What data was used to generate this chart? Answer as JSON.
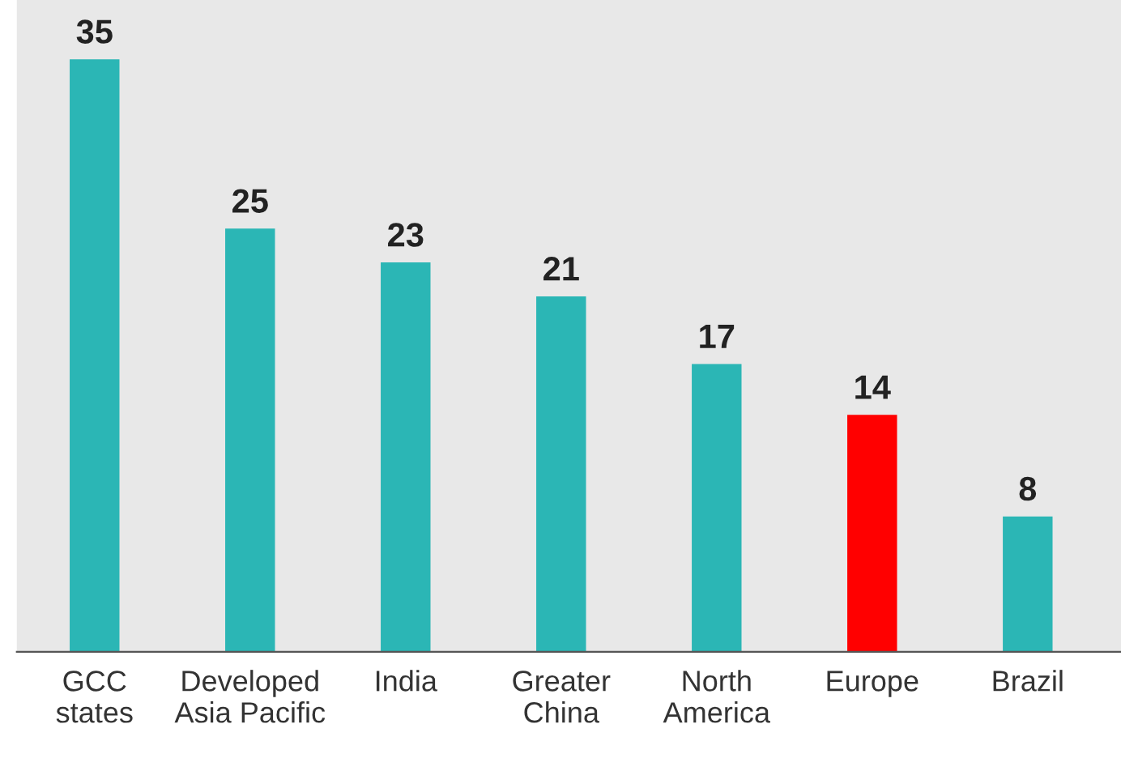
{
  "chart_data": {
    "type": "bar",
    "categories": [
      "GCC\nstates",
      "Developed\nAsia Pacific",
      "India",
      "Greater\nChina",
      "North\nAmerica",
      "Europe",
      "Brazil"
    ],
    "values": [
      35,
      25,
      23,
      21,
      17,
      14,
      8
    ],
    "colors": [
      "#2bb6b5",
      "#2bb6b5",
      "#2bb6b5",
      "#2bb6b5",
      "#2bb6b5",
      "#ff0000",
      "#2bb6b5"
    ],
    "data_labels": true,
    "grid": false,
    "legend": false
  }
}
